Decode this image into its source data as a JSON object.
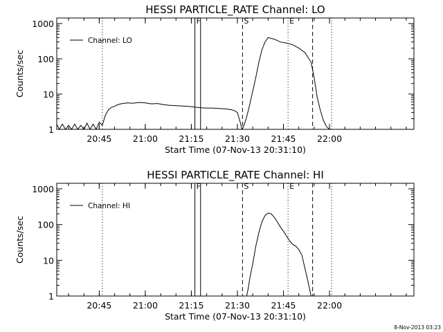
{
  "footer": {
    "timestamp": "8-Nov-2013 03:23"
  },
  "chart_data": [
    {
      "type": "line",
      "title": "HESSI PARTICLE_RATE Channel: LO",
      "xlabel": "Start Time (07-Nov-13 20:31:10)",
      "ylabel": "Counts/sec",
      "yscale": "log",
      "ylim": [
        1,
        1000
      ],
      "xlim": [
        "20:31:10",
        "22:27:30"
      ],
      "xticks": [
        "20:45",
        "21:00",
        "21:15",
        "21:30",
        "21:45",
        "22:00"
      ],
      "yticks": [
        "1",
        "10",
        "100",
        "1000"
      ],
      "grid": false,
      "legend": {
        "position": "top-left",
        "entries": [
          "Channel: LO"
        ]
      },
      "markers": [
        {
          "label": "",
          "time": "20:46:00",
          "style": "dotted"
        },
        {
          "label": "F",
          "time": "21:16:10",
          "style": "solid"
        },
        {
          "label": "",
          "time": "21:18:00",
          "style": "solid"
        },
        {
          "label": "S",
          "time": "21:31:40",
          "style": "dashed"
        },
        {
          "label": "E",
          "time": "21:46:30",
          "style": "dotted"
        },
        {
          "label": "",
          "time": "21:54:30",
          "style": "dashed"
        },
        {
          "label": "",
          "time": "22:00:40",
          "style": "dotted"
        }
      ],
      "series": [
        {
          "name": "Channel: LO",
          "x": [
            "20:31:10",
            "20:32:00",
            "20:33:00",
            "20:34:00",
            "20:35:00",
            "20:36:00",
            "20:37:00",
            "20:38:00",
            "20:39:00",
            "20:40:00",
            "20:41:00",
            "20:42:00",
            "20:43:00",
            "20:44:00",
            "20:45:00",
            "20:46:00",
            "20:47:00",
            "20:48:00",
            "20:49:00",
            "20:50:00",
            "20:51:00",
            "20:52:00",
            "20:54:00",
            "20:56:00",
            "20:58:00",
            "21:00:00",
            "21:02:00",
            "21:04:00",
            "21:06:00",
            "21:08:00",
            "21:10:00",
            "21:12:00",
            "21:14:00",
            "21:16:00",
            "21:18:00",
            "21:20:00",
            "21:22:00",
            "21:24:00",
            "21:26:00",
            "21:28:00",
            "21:29:00",
            "21:30:00",
            "21:31:00",
            "21:31:30",
            "21:32:00",
            "21:33:00",
            "21:34:00",
            "21:35:00",
            "21:36:00",
            "21:37:00",
            "21:38:00",
            "21:39:00",
            "21:40:00",
            "21:42:00",
            "21:44:00",
            "21:46:00",
            "21:48:00",
            "21:50:00",
            "21:52:00",
            "21:54:00",
            "21:55:00",
            "21:56:00",
            "21:57:00",
            "21:58:00",
            "21:59:00",
            "22:00:00"
          ],
          "y": [
            1.4,
            1.0,
            1.4,
            1.0,
            1.3,
            1.0,
            1.4,
            1.0,
            1.3,
            1.0,
            1.5,
            1.0,
            1.4,
            1.0,
            1.6,
            1.3,
            2.5,
            3.6,
            4.2,
            4.5,
            5.0,
            5.3,
            5.6,
            5.5,
            5.8,
            5.6,
            5.3,
            5.4,
            5.0,
            4.8,
            4.7,
            4.6,
            4.5,
            4.3,
            4.1,
            4.0,
            4.0,
            3.9,
            3.8,
            3.6,
            3.4,
            3.0,
            1.5,
            1.0,
            1.2,
            2.2,
            5,
            12,
            30,
            80,
            180,
            300,
            400,
            360,
            300,
            280,
            250,
            200,
            150,
            80,
            30,
            8,
            3.5,
            1.8,
            1.2,
            1.0
          ]
        }
      ]
    },
    {
      "type": "line",
      "title": "HESSI PARTICLE_RATE Channel: HI",
      "xlabel": "Start Time (07-Nov-13 20:31:10)",
      "ylabel": "Counts/sec",
      "yscale": "log",
      "ylim": [
        1,
        1000
      ],
      "xlim": [
        "20:31:10",
        "22:27:30"
      ],
      "xticks": [
        "20:45",
        "21:00",
        "21:15",
        "21:30",
        "21:45",
        "22:00"
      ],
      "yticks": [
        "1",
        "10",
        "100",
        "1000"
      ],
      "grid": false,
      "legend": {
        "position": "top-left",
        "entries": [
          "Channel: HI"
        ]
      },
      "markers": [
        {
          "label": "",
          "time": "20:46:00",
          "style": "dotted"
        },
        {
          "label": "F",
          "time": "21:16:10",
          "style": "solid"
        },
        {
          "label": "",
          "time": "21:18:00",
          "style": "solid"
        },
        {
          "label": "S",
          "time": "21:31:40",
          "style": "dashed"
        },
        {
          "label": "E",
          "time": "21:46:30",
          "style": "dotted"
        },
        {
          "label": "",
          "time": "21:54:30",
          "style": "dashed"
        },
        {
          "label": "",
          "time": "22:00:40",
          "style": "dotted"
        }
      ],
      "series": [
        {
          "name": "Channel: HI",
          "x": [
            "21:33:00",
            "21:33:30",
            "21:34:00",
            "21:35:00",
            "21:36:00",
            "21:37:00",
            "21:38:00",
            "21:39:00",
            "21:40:00",
            "21:41:00",
            "21:42:00",
            "21:43:00",
            "21:44:00",
            "21:45:00",
            "21:46:00",
            "21:47:00",
            "21:48:00",
            "21:49:00",
            "21:50:00",
            "21:51:00",
            "21:52:00",
            "21:53:00",
            "21:54:00"
          ],
          "y": [
            1.0,
            1.6,
            3,
            8,
            25,
            60,
            120,
            180,
            210,
            200,
            160,
            120,
            85,
            65,
            48,
            35,
            28,
            25,
            20,
            14,
            6,
            2.5,
            1.0
          ]
        }
      ]
    }
  ]
}
